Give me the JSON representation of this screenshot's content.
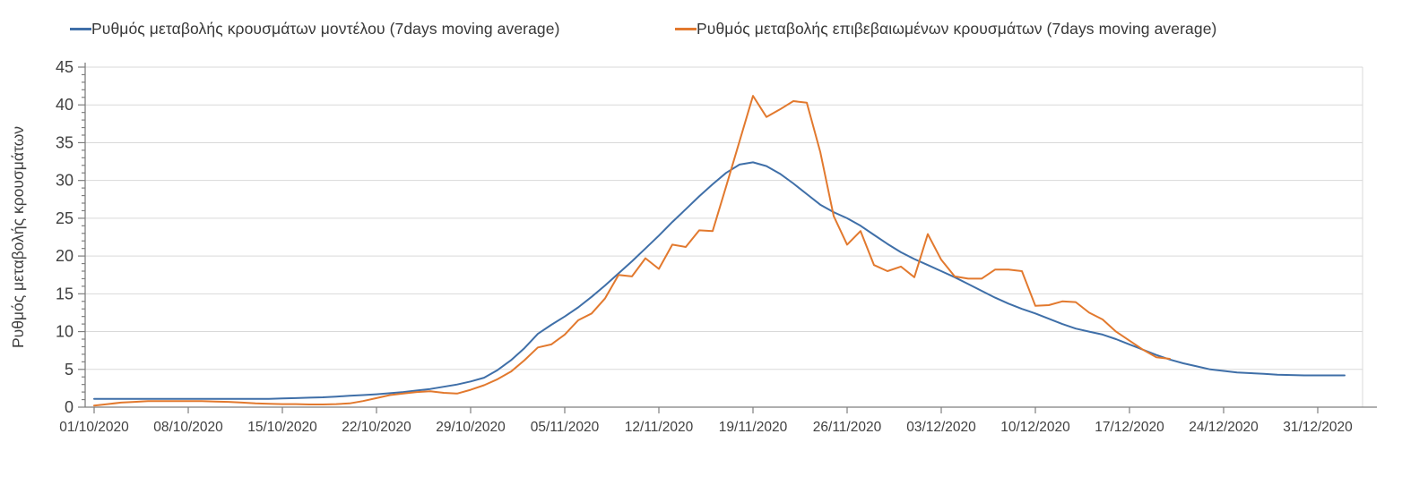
{
  "legend": {
    "items": [
      {
        "label": "Ρυθμός μεταβολής κρουσμάτων μοντέλου (7days moving average)",
        "color": "#3f6fa8"
      },
      {
        "label": "Ρυθμός μεταβολής επιβεβαιωμένων κρουσμάτων (7days moving average)",
        "color": "#e2792e"
      }
    ]
  },
  "chart_data": {
    "type": "line",
    "title": "",
    "xlabel": "",
    "ylabel": "Ρυθμός μεταβολής κρουσμάτων",
    "ylim": [
      0,
      45
    ],
    "y_tick_step": 5,
    "y_minor_tick_step": 1,
    "grid": "horizontal",
    "legend_position": "top",
    "background": "#ffffff",
    "gridline_color": "#d9d9d9",
    "axis_color": "#7f7f7f",
    "tick_label_color": "#404040",
    "x_tick_labels": [
      "01/10/2020",
      "08/10/2020",
      "15/10/2020",
      "22/10/2020",
      "29/10/2020",
      "05/11/2020",
      "12/11/2020",
      "19/11/2020",
      "26/11/2020",
      "03/12/2020",
      "10/12/2020",
      "17/12/2020",
      "24/12/2020",
      "31/12/2020"
    ],
    "x_tick_interval_days": 7,
    "series": [
      {
        "name": "Ρυθμός μεταβολής κρουσμάτων μοντέλου (7days moving average)",
        "color": "#3f6fa8",
        "start_date": "01/10/2020",
        "step_days": 1,
        "values": [
          1.1,
          1.1,
          1.1,
          1.1,
          1.1,
          1.1,
          1.1,
          1.1,
          1.1,
          1.1,
          1.1,
          1.1,
          1.1,
          1.1,
          1.15,
          1.2,
          1.25,
          1.3,
          1.4,
          1.5,
          1.6,
          1.7,
          1.85,
          2.0,
          2.2,
          2.4,
          2.7,
          3.0,
          3.4,
          3.9,
          4.9,
          6.2,
          7.8,
          9.7,
          10.9,
          12.0,
          13.2,
          14.6,
          16.1,
          17.7,
          19.3,
          21.0,
          22.7,
          24.5,
          26.2,
          27.9,
          29.5,
          31.0,
          32.1,
          32.4,
          31.9,
          30.9,
          29.6,
          28.2,
          26.8,
          25.8,
          25.0,
          24.0,
          22.8,
          21.6,
          20.5,
          19.6,
          18.8,
          18.0,
          17.2,
          16.3,
          15.4,
          14.5,
          13.7,
          13.0,
          12.4,
          11.7,
          11.0,
          10.4,
          10.0,
          9.6,
          9.0,
          8.3,
          7.6,
          6.9,
          6.3,
          5.8,
          5.4,
          5.0,
          4.8,
          4.6,
          4.5,
          4.4,
          4.3,
          4.25,
          4.2,
          4.2,
          4.2,
          4.2
        ]
      },
      {
        "name": "Ρυθμός μεταβολής επιβεβαιωμένων κρουσμάτων (7days moving average)",
        "color": "#e2792e",
        "start_date": "01/10/2020",
        "step_days": 1,
        "values": [
          0.2,
          0.4,
          0.6,
          0.7,
          0.8,
          0.8,
          0.8,
          0.8,
          0.8,
          0.75,
          0.7,
          0.6,
          0.5,
          0.45,
          0.4,
          0.4,
          0.35,
          0.35,
          0.4,
          0.5,
          0.8,
          1.2,
          1.6,
          1.8,
          2.0,
          2.1,
          1.9,
          1.8,
          2.3,
          2.9,
          3.7,
          4.7,
          6.2,
          7.9,
          8.3,
          9.6,
          11.5,
          12.4,
          14.4,
          17.5,
          17.3,
          19.7,
          18.3,
          21.5,
          21.2,
          23.4,
          23.3,
          29.2,
          35.2,
          41.2,
          38.4,
          39.4,
          40.5,
          40.3,
          33.8,
          25.3,
          21.5,
          23.3,
          18.8,
          18.0,
          18.6,
          17.2,
          22.9,
          19.5,
          17.3,
          17.0,
          17.0,
          18.2,
          18.2,
          18.0,
          13.4,
          13.5,
          14.0,
          13.9,
          12.5,
          11.6,
          10.0,
          8.8,
          7.6,
          6.6,
          6.4
        ]
      }
    ]
  }
}
